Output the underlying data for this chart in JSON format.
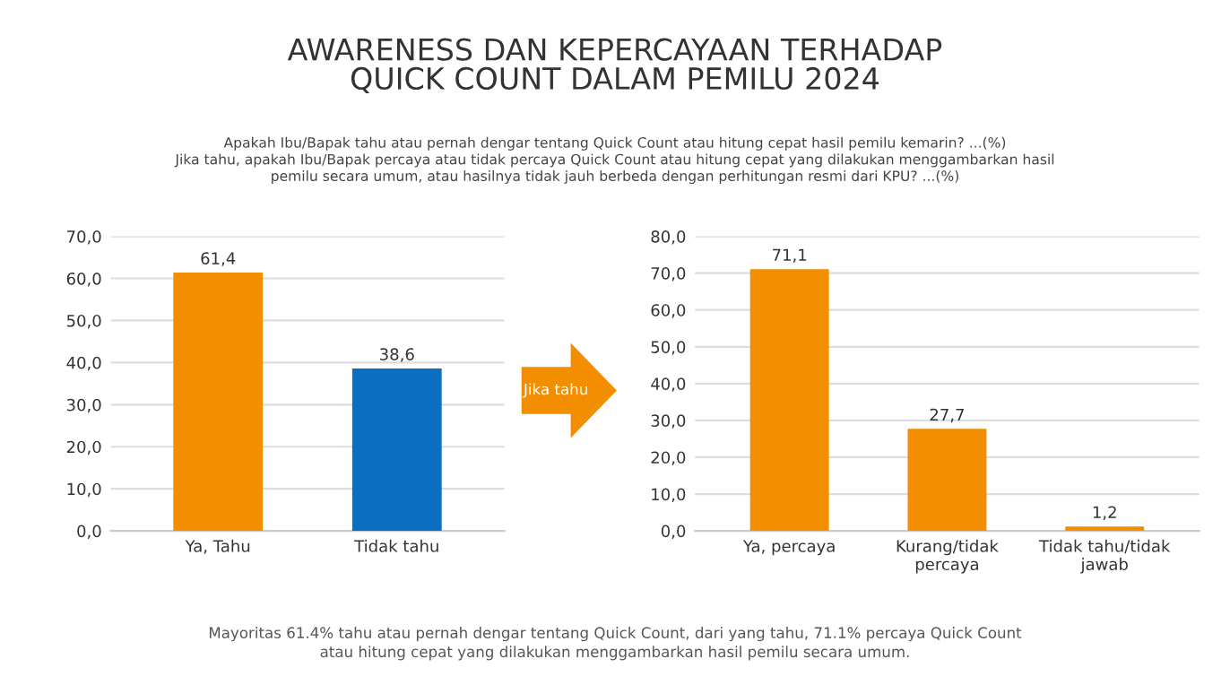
{
  "chart_data": [
    {
      "type": "bar",
      "title": "AWARENESS DAN KEPERCAYAAN TERHADAP\nQUICK COUNT DALAM PEMILU 2024",
      "subtitle": "Apakah Ibu/Bapak tahu atau pernah dengar tentang Quick Count atau hitung cepat hasil pemilu kemarin? ...(%)\nJika tahu, apakah Ibu/Bapak percaya atau tidak percaya Quick Count atau hitung cepat yang dilakukan menggambarkan hasil\npemilu secara umum, atau hasilnya tidak jauh berbeda dengan perhitungan resmi dari KPU? ...(%)",
      "categories": [
        "Ya, Tahu",
        "Tidak tahu"
      ],
      "values": [
        61.4,
        38.6
      ],
      "colors": [
        "#f28e00",
        "#0a6fc2"
      ],
      "value_labels": [
        "61,4",
        "38,6"
      ],
      "ylim": [
        0,
        70
      ],
      "yticks": [
        {
          "value": 0,
          "label": "0,0"
        },
        {
          "value": 10,
          "label": "10,0"
        },
        {
          "value": 20,
          "label": "20,0"
        },
        {
          "value": 30,
          "label": "30,0"
        },
        {
          "value": 40,
          "label": "40,0"
        },
        {
          "value": 50,
          "label": "50,0"
        },
        {
          "value": 60,
          "label": "60,0"
        },
        {
          "value": 70,
          "label": "70,0"
        }
      ],
      "grid": "y",
      "legend": false
    },
    {
      "type": "bar",
      "categories": [
        "Ya, percaya",
        "Kurang/tidak\npercaya",
        "Tidak tahu/tidak\njawab"
      ],
      "values": [
        71.1,
        27.7,
        1.2
      ],
      "colors": [
        "#f28e00",
        "#f28e00",
        "#f28e00"
      ],
      "value_labels": [
        "71,1",
        "27,7",
        "1,2"
      ],
      "ylim": [
        0,
        80
      ],
      "yticks": [
        {
          "value": 0,
          "label": "0,0"
        },
        {
          "value": 10,
          "label": "10,0"
        },
        {
          "value": 20,
          "label": "20,0"
        },
        {
          "value": 30,
          "label": "30,0"
        },
        {
          "value": 40,
          "label": "40,0"
        },
        {
          "value": 50,
          "label": "50,0"
        },
        {
          "value": 60,
          "label": "60,0"
        },
        {
          "value": 70,
          "label": "70,0"
        },
        {
          "value": 80,
          "label": "80,0"
        }
      ],
      "grid": "y",
      "legend": false,
      "annotations": [
        "Jika tahu",
        "Mayoritas 61.4% tahu atau pernah dengar tentang Quick Count, dari yang tahu, 71.1% percaya Quick Count\natau hitung cepat yang dilakukan menggambarkan hasil pemilu secara umum."
      ]
    }
  ]
}
